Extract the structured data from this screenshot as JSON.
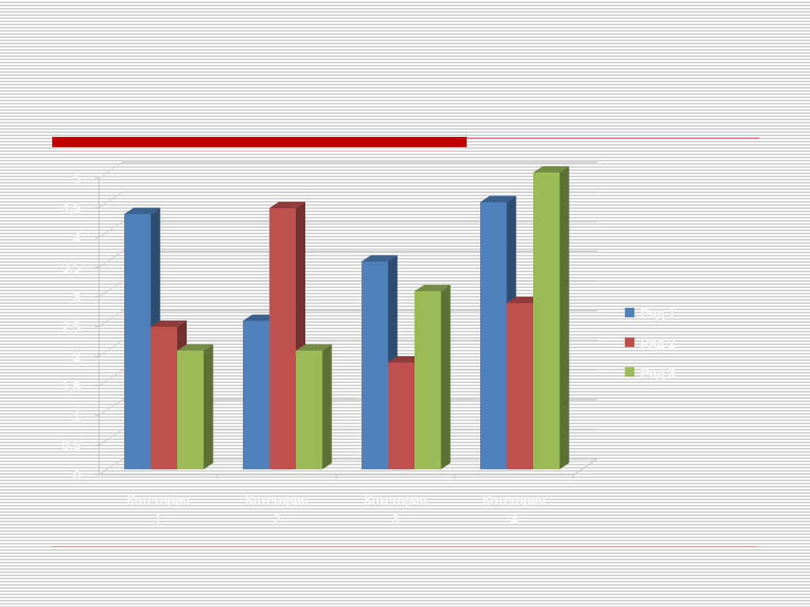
{
  "slide": {
    "accent_color": "#c00000"
  },
  "chart_data": {
    "type": "bar",
    "style": "3d-clustered-column",
    "categories": [
      "Категория 1",
      "Категория 2",
      "Категория 3",
      "Категория 4"
    ],
    "series": [
      {
        "name": "Ряд 1",
        "values": [
          4.3,
          2.5,
          3.5,
          4.5
        ],
        "color": "#4f81bd"
      },
      {
        "name": "Ряд 2",
        "values": [
          2.4,
          4.4,
          1.8,
          2.8
        ],
        "color": "#c0504d"
      },
      {
        "name": "Ряд 3",
        "values": [
          2,
          2,
          3,
          5
        ],
        "color": "#9bbb59"
      }
    ],
    "yticks": [
      "0",
      "0,5",
      "1",
      "1,5",
      "2",
      "2,5",
      "3",
      "3,5",
      "4",
      "4,5",
      "5"
    ],
    "ylim": [
      0,
      5
    ],
    "grid": true,
    "legend": "right"
  }
}
